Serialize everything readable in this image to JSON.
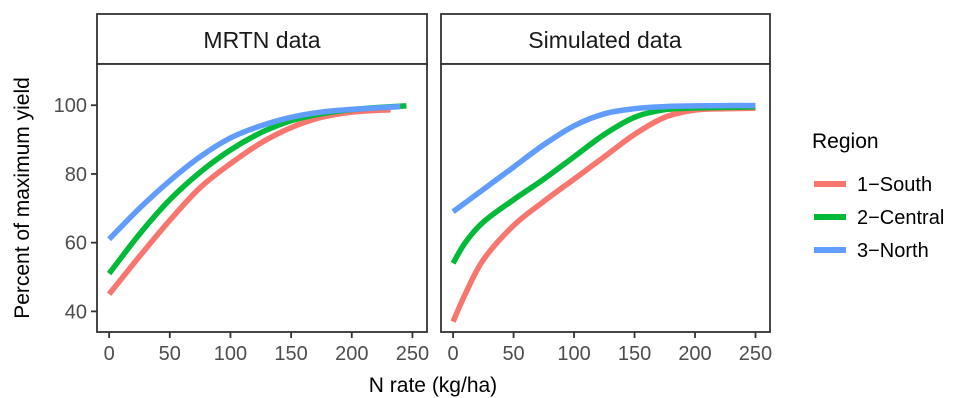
{
  "chart_data": {
    "type": "line",
    "xlabel": "N rate (kg/ha)",
    "ylabel": "Percent of maximum yield",
    "xlim": [
      -10,
      262
    ],
    "ylim": [
      34,
      112
    ],
    "x_ticks": [
      0,
      50,
      100,
      150,
      200,
      250
    ],
    "y_ticks": [
      40,
      60,
      80,
      100
    ],
    "grid": false,
    "legend_placement": "right",
    "legend_title": "Region",
    "series_legend": [
      {
        "name": "1−South",
        "color": "#F8766D"
      },
      {
        "name": "2−Central",
        "color": "#00BA38"
      },
      {
        "name": "3−North",
        "color": "#619CFF"
      }
    ],
    "panels": [
      {
        "title": "MRTN data",
        "series": [
          {
            "name": "1−South",
            "color": "#F8766D",
            "x": [
              0,
              25,
              50,
              75,
              100,
              125,
              150,
              175,
              200,
              232
            ],
            "y": [
              45,
              56,
              66.5,
              76,
              83,
              89,
              93.5,
              96.5,
              98,
              98.7
            ]
          },
          {
            "name": "2−Central",
            "color": "#00BA38",
            "x": [
              0,
              25,
              50,
              75,
              100,
              125,
              150,
              175,
              200,
              225,
              245
            ],
            "y": [
              51,
              62.5,
              72.5,
              80.5,
              87,
              92,
              95.5,
              97.5,
              98.7,
              99.4,
              99.8
            ]
          },
          {
            "name": "3−North",
            "color": "#619CFF",
            "x": [
              0,
              25,
              50,
              75,
              100,
              125,
              150,
              175,
              200,
              225,
              240
            ],
            "y": [
              61,
              70,
              78,
              85,
              90.5,
              94,
              96.5,
              98,
              98.8,
              99.3,
              99.6
            ]
          }
        ]
      },
      {
        "title": "Simulated data",
        "series": [
          {
            "name": "1−South",
            "color": "#F8766D",
            "x": [
              0,
              10,
              25,
              50,
              75,
              100,
              125,
              150,
              175,
              200,
              225,
              250
            ],
            "y": [
              37,
              45,
              55,
              65,
              72,
              78.5,
              85,
              91.5,
              96.5,
              98.6,
              99,
              99.1
            ]
          },
          {
            "name": "2−Central",
            "color": "#00BA38",
            "x": [
              0,
              10,
              25,
              50,
              75,
              100,
              125,
              150,
              175,
              200,
              225,
              250
            ],
            "y": [
              54,
              60,
              66,
              72.5,
              78.5,
              85,
              91.5,
              96.5,
              98.7,
              99.2,
              99.4,
              99.5
            ]
          },
          {
            "name": "3−North",
            "color": "#619CFF",
            "x": [
              0,
              25,
              50,
              75,
              100,
              125,
              150,
              175,
              200,
              225,
              250
            ],
            "y": [
              69,
              75.5,
              82,
              88.5,
              94,
              97.5,
              99,
              99.6,
              99.8,
              99.9,
              99.9
            ]
          }
        ]
      }
    ]
  }
}
